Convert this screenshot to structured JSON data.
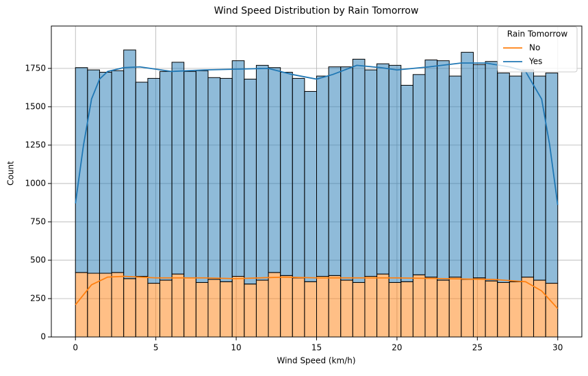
{
  "chart_data": {
    "type": "histogram",
    "title": "Wind Speed Distribution by Rain Tomorrow",
    "xlabel": "Wind Speed (km/h)",
    "ylabel": "Count",
    "bins": [
      0,
      0.75,
      1.5,
      2.25,
      3,
      3.75,
      4.5,
      5.25,
      6,
      6.75,
      7.5,
      8.25,
      9,
      9.75,
      10.5,
      11.25,
      12,
      12.75,
      13.5,
      14.25,
      15,
      15.75,
      16.5,
      17.25,
      18,
      18.75,
      19.5,
      20.25,
      21,
      21.75,
      22.5,
      23.25,
      24,
      24.75,
      25.5,
      26.25,
      27,
      27.75,
      28.5,
      29.25,
      30
    ],
    "stacked": true,
    "series": [
      {
        "name": "No",
        "color": "#ff7f0e",
        "values": [
          420,
          415,
          415,
          420,
          380,
          395,
          350,
          370,
          410,
          385,
          355,
          375,
          360,
          395,
          345,
          370,
          420,
          400,
          385,
          360,
          395,
          400,
          370,
          355,
          395,
          410,
          355,
          360,
          405,
          390,
          370,
          390,
          375,
          385,
          365,
          355,
          360,
          390,
          370,
          350
        ],
        "kde": {
          "x": [
            0,
            1,
            2,
            3,
            5,
            8,
            10,
            13,
            15,
            18,
            20,
            23,
            26,
            28,
            29,
            30
          ],
          "values": [
            210,
            340,
            390,
            395,
            385,
            385,
            380,
            390,
            385,
            385,
            385,
            380,
            375,
            360,
            300,
            185
          ]
        }
      },
      {
        "name": "Yes",
        "color": "#1f77b4",
        "values": [
          1335,
          1325,
          1310,
          1315,
          1490,
          1265,
          1335,
          1360,
          1380,
          1345,
          1380,
          1315,
          1325,
          1405,
          1335,
          1400,
          1335,
          1325,
          1300,
          1240,
          1305,
          1360,
          1390,
          1455,
          1345,
          1370,
          1415,
          1280,
          1305,
          1415,
          1430,
          1310,
          1480,
          1390,
          1430,
          1365,
          1340,
          1350,
          1330,
          1370
        ],
        "kde": {
          "x": [
            0,
            0.5,
            1,
            1.5,
            2,
            3,
            4,
            5,
            6,
            8,
            10,
            12,
            13.5,
            15,
            16,
            17.5,
            19,
            20,
            22,
            24,
            25.5,
            27,
            28,
            29,
            29.5,
            30
          ],
          "values": [
            870,
            1250,
            1550,
            1680,
            1730,
            1755,
            1760,
            1745,
            1730,
            1740,
            1745,
            1750,
            1710,
            1680,
            1710,
            1770,
            1755,
            1740,
            1760,
            1785,
            1785,
            1760,
            1730,
            1550,
            1250,
            860
          ]
        }
      }
    ],
    "legend_title": "Rain Tomorrow",
    "legend": "upper right",
    "xlim": [
      -1.5,
      31.5
    ],
    "xticks": [
      0,
      5,
      10,
      15,
      20,
      25,
      30
    ],
    "ylim": [
      0,
      2026
    ],
    "yticks": [
      0,
      250,
      500,
      750,
      1000,
      1250,
      1500,
      1750
    ],
    "grid": true
  }
}
